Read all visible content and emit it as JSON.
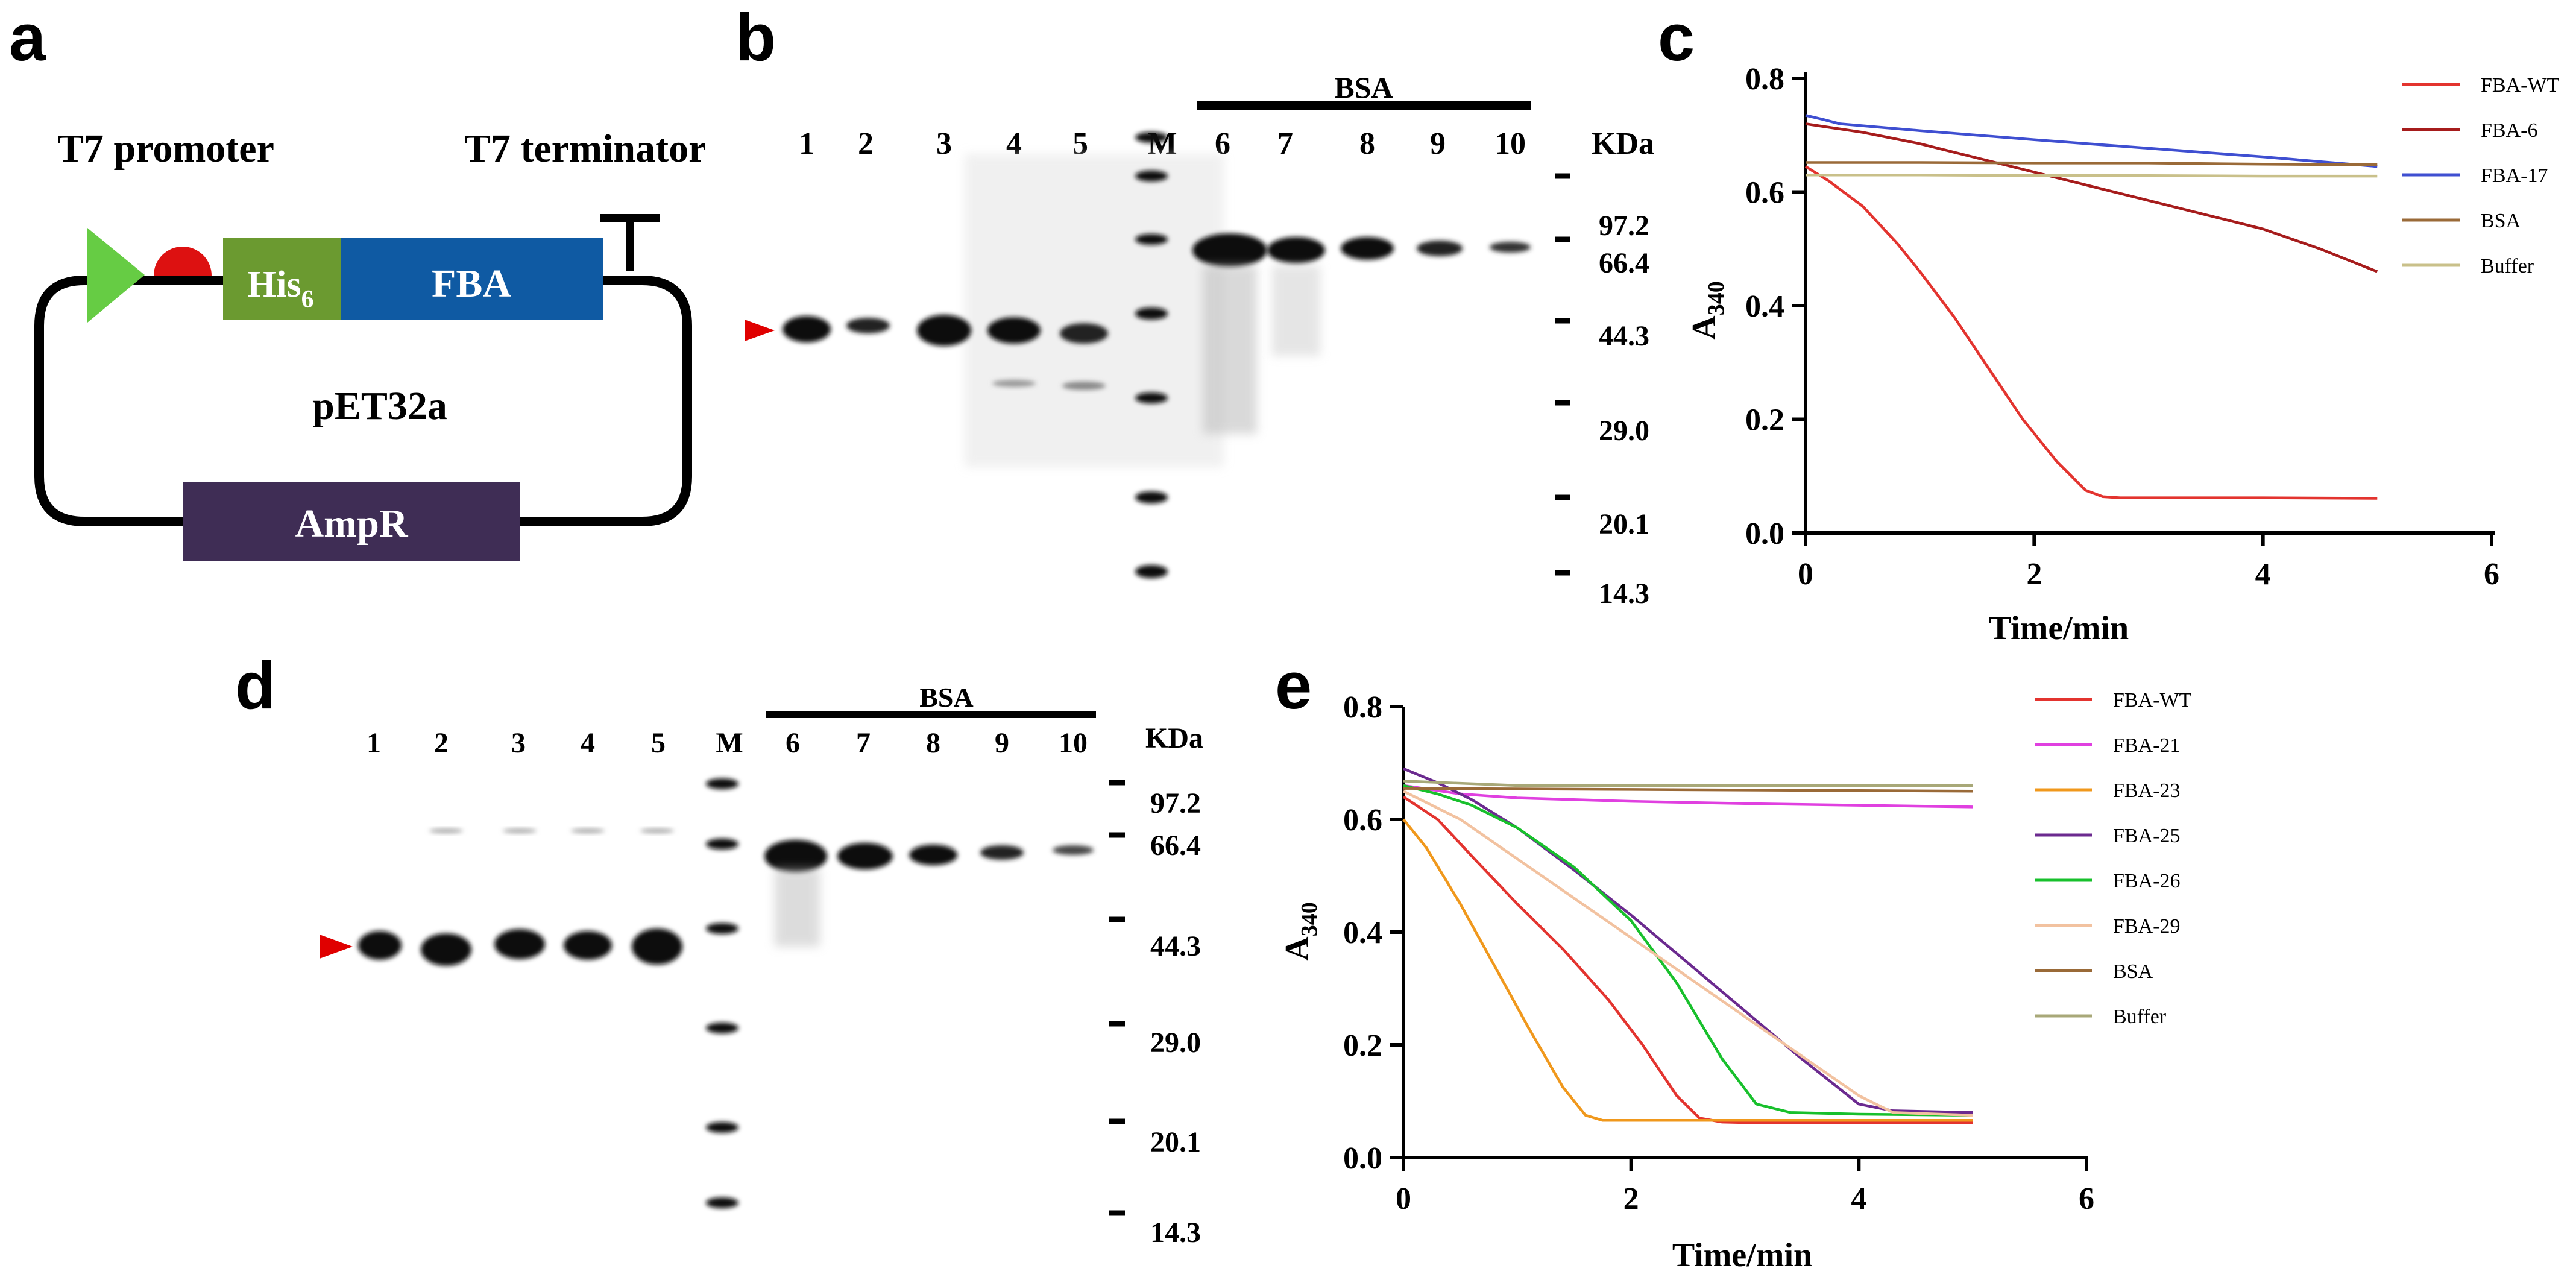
{
  "panel_labels": {
    "a": "a",
    "b": "b",
    "c": "c",
    "d": "d",
    "e": "e"
  },
  "plasmid": {
    "promoter_label": "T7 promoter",
    "terminator_label": "T7 terminator",
    "his_tag_label": "His",
    "his_tag_subscript": "6",
    "gene_label": "FBA",
    "vector_label": "pET32a",
    "resistance_label": "AmpR",
    "colors": {
      "promoter": "#66cc44",
      "rbs": "#dd1111",
      "his": "#6b9a30",
      "gene": "#0f5aa3",
      "resistance": "#3f2d55"
    }
  },
  "gel_b": {
    "lane_labels": [
      "1",
      "2",
      "3",
      "4",
      "5",
      "M",
      "6",
      "7",
      "8",
      "9",
      "10"
    ],
    "bsa_label": "BSA",
    "unit_label": "KDa",
    "marker_sizes": [
      "97.2",
      "66.4",
      "44.3",
      "29.0",
      "20.1",
      "14.3"
    ],
    "target_arrow": "target-band-arrow"
  },
  "gel_d": {
    "lane_labels": [
      "1",
      "2",
      "3",
      "4",
      "5",
      "M",
      "6",
      "7",
      "8",
      "9",
      "10"
    ],
    "bsa_label": "BSA",
    "unit_label": "KDa",
    "marker_sizes": [
      "97.2",
      "66.4",
      "44.3",
      "29.0",
      "20.1",
      "14.3"
    ],
    "target_arrow": "target-band-arrow"
  },
  "chart_data": [
    {
      "panel": "c",
      "type": "line",
      "xlabel": "Time/min",
      "ylabel": "A",
      "ylabel_subscript": "340",
      "xlim": [
        0,
        6
      ],
      "ylim": [
        0,
        0.8
      ],
      "xticks": [
        "0",
        "2",
        "4",
        "6"
      ],
      "yticks": [
        "0.0",
        "0.2",
        "0.4",
        "0.6",
        "0.8"
      ],
      "legend_position": "top-right",
      "series": [
        {
          "name": "FBA-WT",
          "color": "#e3342f",
          "x": [
            0,
            0.2,
            0.5,
            0.8,
            1.0,
            1.3,
            1.6,
            1.9,
            2.2,
            2.45,
            2.6,
            2.75,
            3,
            4,
            5
          ],
          "y": [
            0.645,
            0.62,
            0.575,
            0.51,
            0.46,
            0.38,
            0.29,
            0.2,
            0.125,
            0.075,
            0.064,
            0.062,
            0.062,
            0.062,
            0.061
          ]
        },
        {
          "name": "FBA-6",
          "color": "#a61c1c",
          "x": [
            0,
            0.5,
            1,
            1.5,
            2,
            2.5,
            3,
            3.5,
            4,
            4.5,
            5
          ],
          "y": [
            0.72,
            0.705,
            0.685,
            0.66,
            0.635,
            0.61,
            0.585,
            0.56,
            0.535,
            0.5,
            0.46
          ]
        },
        {
          "name": "FBA-17",
          "color": "#3f4fd1",
          "x": [
            0,
            0.15,
            0.3,
            1,
            2,
            3,
            4,
            5
          ],
          "y": [
            0.735,
            0.728,
            0.72,
            0.708,
            0.692,
            0.677,
            0.662,
            0.645
          ]
        },
        {
          "name": "BSA",
          "color": "#9a6a38",
          "x": [
            0,
            1,
            2,
            3,
            4,
            5
          ],
          "y": [
            0.652,
            0.652,
            0.651,
            0.651,
            0.649,
            0.648
          ]
        },
        {
          "name": "Buffer",
          "color": "#c9c08a",
          "x": [
            0,
            1,
            2,
            3,
            4,
            5
          ],
          "y": [
            0.63,
            0.63,
            0.629,
            0.629,
            0.628,
            0.628
          ]
        }
      ]
    },
    {
      "panel": "e",
      "type": "line",
      "xlabel": "Time/min",
      "ylabel": "A",
      "ylabel_subscript": "340",
      "xlim": [
        0,
        6
      ],
      "ylim": [
        0,
        0.8
      ],
      "xticks": [
        "0",
        "2",
        "4",
        "6"
      ],
      "yticks": [
        "0.0",
        "0.2",
        "0.4",
        "0.6",
        "0.8"
      ],
      "legend_position": "top-right",
      "series": [
        {
          "name": "FBA-WT",
          "color": "#e3342f",
          "x": [
            0,
            0.3,
            0.6,
            1,
            1.4,
            1.8,
            2.1,
            2.4,
            2.6,
            2.8,
            3,
            4,
            5
          ],
          "y": [
            0.64,
            0.6,
            0.535,
            0.45,
            0.37,
            0.28,
            0.2,
            0.11,
            0.07,
            0.063,
            0.062,
            0.062,
            0.062
          ]
        },
        {
          "name": "FBA-21",
          "color": "#e040e0",
          "x": [
            0,
            0.5,
            1,
            2,
            3,
            4,
            5
          ],
          "y": [
            0.66,
            0.645,
            0.638,
            0.632,
            0.628,
            0.625,
            0.622
          ]
        },
        {
          "name": "FBA-23",
          "color": "#f0981c",
          "x": [
            0,
            0.2,
            0.5,
            0.8,
            1.1,
            1.4,
            1.6,
            1.75,
            2,
            3,
            4,
            5
          ],
          "y": [
            0.6,
            0.55,
            0.45,
            0.34,
            0.23,
            0.125,
            0.075,
            0.066,
            0.066,
            0.066,
            0.066,
            0.066
          ]
        },
        {
          "name": "FBA-25",
          "color": "#6b2a8f",
          "x": [
            0,
            0.3,
            0.6,
            1,
            1.5,
            2,
            2.5,
            3,
            3.5,
            4,
            4.3,
            5
          ],
          "y": [
            0.69,
            0.665,
            0.635,
            0.585,
            0.51,
            0.43,
            0.345,
            0.26,
            0.175,
            0.095,
            0.083,
            0.08
          ]
        },
        {
          "name": "FBA-26",
          "color": "#18c02c",
          "x": [
            0,
            0.3,
            0.6,
            1,
            1.5,
            2,
            2.4,
            2.8,
            3.1,
            3.4,
            4,
            5
          ],
          "y": [
            0.66,
            0.645,
            0.625,
            0.585,
            0.515,
            0.42,
            0.31,
            0.175,
            0.095,
            0.08,
            0.077,
            0.075
          ]
        },
        {
          "name": "FBA-29",
          "color": "#f2c2a0",
          "x": [
            0,
            0.5,
            1,
            1.5,
            2,
            2.5,
            3,
            3.5,
            4,
            4.3,
            5
          ],
          "y": [
            0.65,
            0.6,
            0.53,
            0.46,
            0.39,
            0.32,
            0.25,
            0.18,
            0.11,
            0.08,
            0.075
          ]
        },
        {
          "name": "BSA",
          "color": "#9a6a38",
          "x": [
            0,
            1,
            2,
            3,
            4,
            5
          ],
          "y": [
            0.655,
            0.654,
            0.653,
            0.652,
            0.651,
            0.65
          ]
        },
        {
          "name": "Buffer",
          "color": "#a8a878",
          "x": [
            0,
            1,
            2,
            3,
            4,
            5
          ],
          "y": [
            0.668,
            0.66,
            0.66,
            0.66,
            0.66,
            0.66
          ]
        }
      ]
    }
  ]
}
